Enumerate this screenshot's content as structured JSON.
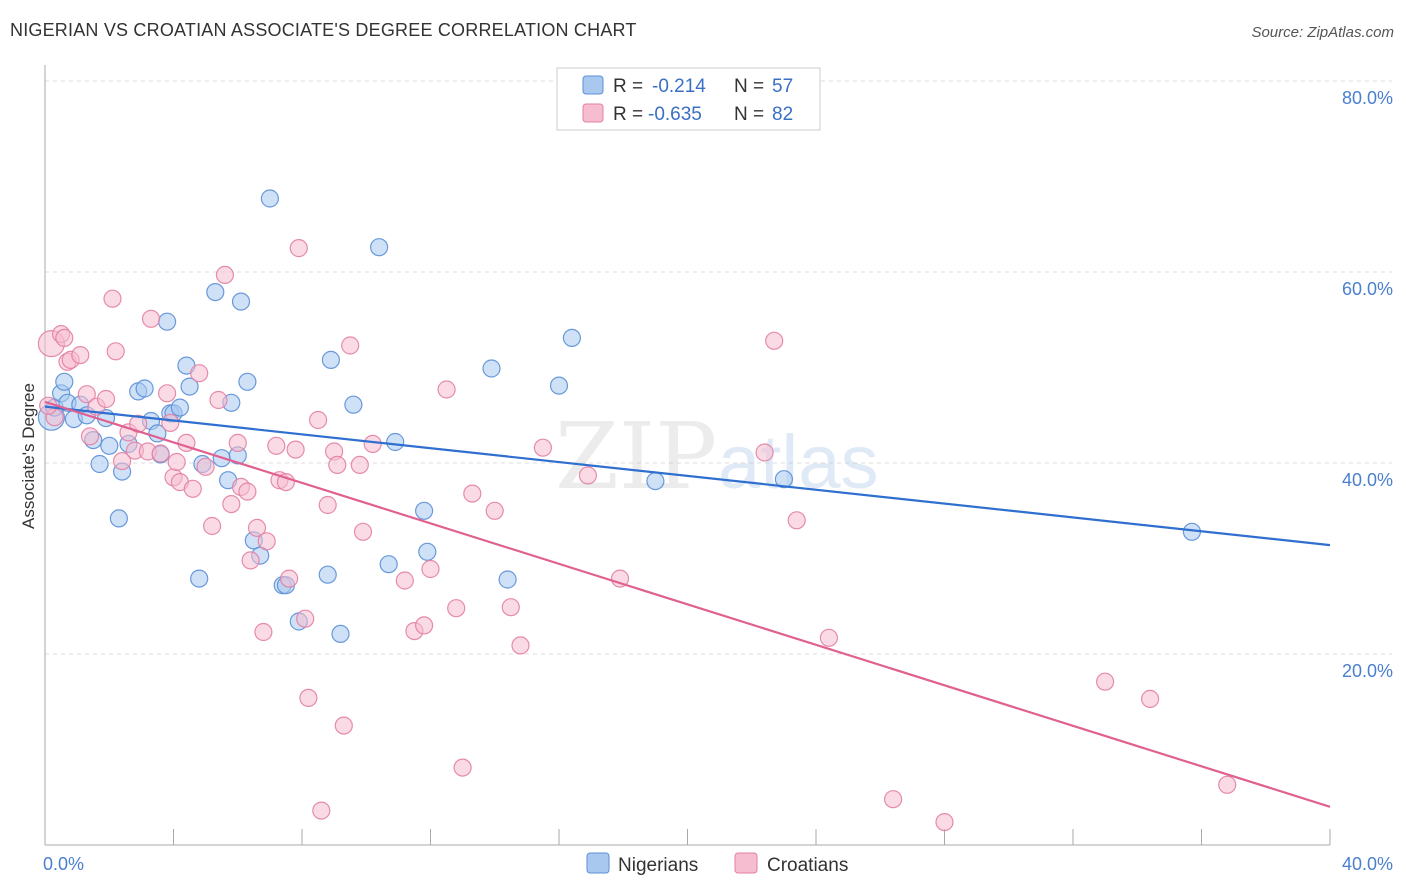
{
  "title": "NIGERIAN VS CROATIAN ASSOCIATE'S DEGREE CORRELATION CHART",
  "source": "Source: ZipAtlas.com",
  "watermark": {
    "zip": "ZIP",
    "atlas": "atlas"
  },
  "colors": {
    "nigerians_fill": "#a8c8f0",
    "nigerians_stroke": "#5b8fd6",
    "nigerians_line": "#2f6fcf",
    "croatians_fill": "#f6bdd0",
    "croatians_stroke": "#e37fa3",
    "croatians_line": "#e06090",
    "grid": "#dddddd",
    "tick_text": "#4a7fcf"
  },
  "legend": {
    "r_label": "R =",
    "n_label": "N =",
    "rows": [
      {
        "series": "nigerians",
        "r": "-0.214",
        "n": "57"
      },
      {
        "series": "croatians",
        "r": "-0.635",
        "n": "82"
      }
    ]
  },
  "chart_data": {
    "type": "scatter",
    "xlabel": "",
    "ylabel": "Associate's Degree",
    "xlim": [
      0,
      40
    ],
    "ylim": [
      0,
      82
    ],
    "x_tick_labels": [
      {
        "value": 0,
        "label": "0.0%"
      },
      {
        "value": 40,
        "label": "40.0%"
      }
    ],
    "y_tick_labels": [
      {
        "value": 20,
        "label": "20.0%"
      },
      {
        "value": 40,
        "label": "40.0%"
      },
      {
        "value": 60,
        "label": "60.0%"
      },
      {
        "value": 80,
        "label": "80.0%"
      }
    ],
    "legend_position": "top-center",
    "series": [
      {
        "name": "Nigerians",
        "trend": {
          "x": [
            0,
            40
          ],
          "y": [
            45.9,
            31.4
          ]
        },
        "points": [
          [
            0.2,
            44.8
          ],
          [
            0.3,
            45.8
          ],
          [
            0.5,
            47.3
          ],
          [
            0.6,
            48.5
          ],
          [
            0.7,
            46.3
          ],
          [
            0.9,
            44.6
          ],
          [
            1.1,
            46.1
          ],
          [
            1.3,
            45.0
          ],
          [
            1.5,
            42.4
          ],
          [
            1.7,
            39.9
          ],
          [
            1.9,
            44.7
          ],
          [
            2.0,
            41.8
          ],
          [
            2.3,
            34.2
          ],
          [
            2.4,
            39.1
          ],
          [
            2.6,
            42.0
          ],
          [
            2.9,
            47.5
          ],
          [
            3.1,
            47.8
          ],
          [
            3.3,
            44.4
          ],
          [
            3.5,
            43.1
          ],
          [
            3.6,
            40.9
          ],
          [
            3.8,
            54.8
          ],
          [
            3.9,
            45.2
          ],
          [
            4.0,
            45.2
          ],
          [
            4.2,
            45.8
          ],
          [
            4.4,
            50.2
          ],
          [
            4.5,
            48.0
          ],
          [
            4.8,
            27.9
          ],
          [
            4.9,
            39.9
          ],
          [
            5.3,
            57.9
          ],
          [
            5.5,
            40.5
          ],
          [
            5.7,
            38.2
          ],
          [
            5.8,
            46.3
          ],
          [
            6.0,
            40.8
          ],
          [
            6.1,
            56.9
          ],
          [
            6.3,
            48.5
          ],
          [
            6.5,
            31.9
          ],
          [
            6.7,
            30.3
          ],
          [
            7.0,
            67.7
          ],
          [
            7.4,
            27.2
          ],
          [
            7.5,
            27.2
          ],
          [
            7.9,
            23.4
          ],
          [
            8.8,
            28.3
          ],
          [
            8.9,
            50.8
          ],
          [
            9.2,
            22.1
          ],
          [
            9.6,
            46.1
          ],
          [
            10.4,
            62.6
          ],
          [
            10.7,
            29.4
          ],
          [
            10.9,
            42.2
          ],
          [
            11.8,
            35.0
          ],
          [
            11.9,
            30.7
          ],
          [
            13.9,
            49.9
          ],
          [
            14.4,
            27.8
          ],
          [
            16.0,
            48.1
          ],
          [
            16.4,
            53.1
          ],
          [
            19.0,
            38.1
          ],
          [
            23.0,
            38.3
          ],
          [
            35.7,
            32.8
          ]
        ]
      },
      {
        "name": "Croatians",
        "trend": {
          "x": [
            0,
            40
          ],
          "y": [
            46.4,
            4.0
          ]
        },
        "points": [
          [
            0.2,
            52.5
          ],
          [
            0.3,
            44.8
          ],
          [
            0.5,
            53.5
          ],
          [
            0.6,
            53.1
          ],
          [
            0.7,
            50.6
          ],
          [
            0.8,
            50.8
          ],
          [
            1.1,
            51.3
          ],
          [
            1.3,
            47.2
          ],
          [
            1.4,
            42.8
          ],
          [
            1.6,
            45.9
          ],
          [
            1.9,
            46.7
          ],
          [
            2.1,
            57.2
          ],
          [
            2.2,
            51.7
          ],
          [
            2.4,
            40.2
          ],
          [
            2.6,
            43.2
          ],
          [
            2.8,
            41.3
          ],
          [
            2.9,
            44.1
          ],
          [
            3.2,
            41.2
          ],
          [
            3.3,
            55.1
          ],
          [
            3.6,
            41.0
          ],
          [
            3.8,
            47.3
          ],
          [
            3.9,
            44.2
          ],
          [
            4.0,
            38.5
          ],
          [
            4.1,
            40.1
          ],
          [
            4.2,
            38.0
          ],
          [
            4.4,
            42.1
          ],
          [
            4.6,
            37.3
          ],
          [
            4.8,
            49.4
          ],
          [
            5.0,
            39.6
          ],
          [
            5.2,
            33.4
          ],
          [
            5.4,
            46.6
          ],
          [
            5.6,
            59.7
          ],
          [
            5.8,
            35.7
          ],
          [
            6.0,
            42.1
          ],
          [
            6.1,
            37.5
          ],
          [
            6.3,
            37.0
          ],
          [
            6.4,
            29.8
          ],
          [
            6.6,
            33.2
          ],
          [
            6.8,
            22.3
          ],
          [
            6.9,
            31.8
          ],
          [
            7.2,
            41.8
          ],
          [
            7.3,
            38.2
          ],
          [
            7.5,
            38.0
          ],
          [
            7.6,
            27.9
          ],
          [
            7.8,
            41.4
          ],
          [
            7.9,
            62.5
          ],
          [
            8.1,
            23.7
          ],
          [
            8.2,
            15.4
          ],
          [
            8.5,
            44.5
          ],
          [
            8.6,
            3.6
          ],
          [
            8.8,
            35.6
          ],
          [
            9.0,
            41.2
          ],
          [
            9.1,
            39.8
          ],
          [
            9.3,
            12.5
          ],
          [
            9.5,
            52.3
          ],
          [
            9.8,
            39.8
          ],
          [
            9.9,
            32.8
          ],
          [
            10.2,
            42.0
          ],
          [
            11.2,
            27.7
          ],
          [
            11.5,
            22.4
          ],
          [
            11.8,
            23.0
          ],
          [
            12.0,
            28.9
          ],
          [
            12.5,
            47.7
          ],
          [
            12.8,
            24.8
          ],
          [
            13.0,
            8.1
          ],
          [
            13.3,
            36.8
          ],
          [
            14.0,
            35.0
          ],
          [
            14.5,
            24.9
          ],
          [
            14.8,
            20.9
          ],
          [
            15.5,
            41.6
          ],
          [
            16.9,
            38.7
          ],
          [
            17.9,
            27.9
          ],
          [
            22.4,
            41.1
          ],
          [
            22.7,
            52.8
          ],
          [
            23.4,
            34.0
          ],
          [
            24.4,
            21.7
          ],
          [
            26.4,
            4.8
          ],
          [
            28.0,
            2.4
          ],
          [
            33.0,
            17.1
          ],
          [
            34.4,
            15.3
          ],
          [
            36.8,
            6.3
          ],
          [
            0.1,
            46.0
          ]
        ]
      }
    ]
  }
}
